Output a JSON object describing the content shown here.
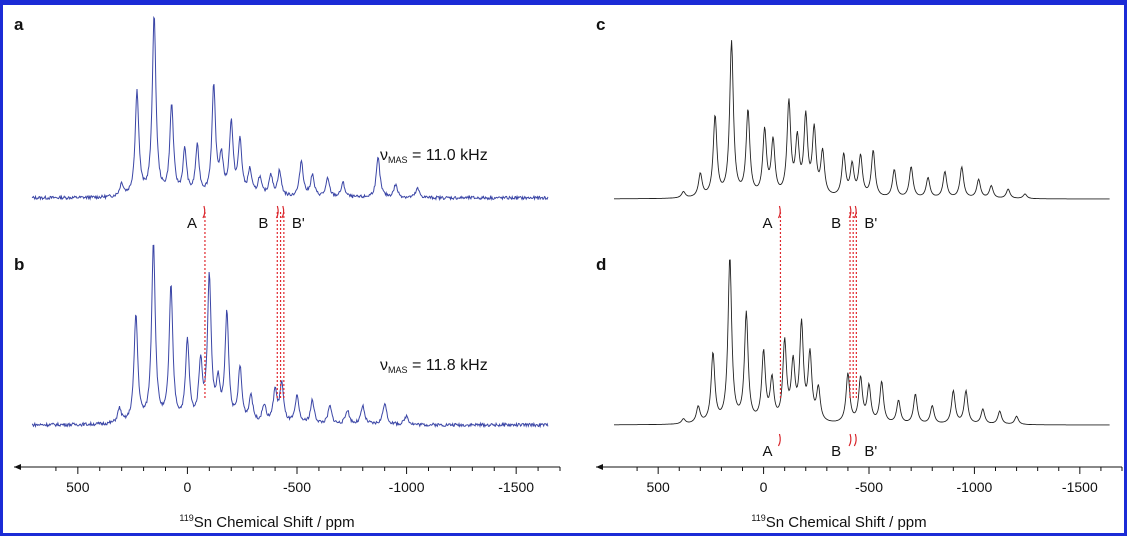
{
  "chart_data": [
    {
      "type": "line",
      "panel_label": "a",
      "color": "#3b46a6",
      "annotation": {
        "prefix": "ν",
        "sub": "MAS",
        "suffix": " = 11.0 kHz"
      },
      "xlim": [
        700,
        -1700
      ],
      "x_ticks": [
        500,
        0,
        -500,
        -1000,
        -1500
      ],
      "x_tick_labels": [
        "500",
        "0",
        "-500",
        "-1000",
        "-1500"
      ],
      "xlabel": {
        "sup": "119",
        "text": "Sn Chemical Shift / ppm"
      },
      "markers": [
        "A",
        "B",
        "B'"
      ],
      "peaks": [
        [
          300,
          0.07
        ],
        [
          230,
          0.58
        ],
        [
          152,
          1.0
        ],
        [
          72,
          0.5
        ],
        [
          12,
          0.25
        ],
        [
          -45,
          0.27
        ],
        [
          -120,
          0.6
        ],
        [
          -155,
          0.2
        ],
        [
          -200,
          0.4
        ],
        [
          -240,
          0.3
        ],
        [
          -285,
          0.14
        ],
        [
          -330,
          0.1
        ],
        [
          -380,
          0.12
        ],
        [
          -420,
          0.14
        ],
        [
          -520,
          0.2
        ],
        [
          -570,
          0.12
        ],
        [
          -640,
          0.1
        ],
        [
          -710,
          0.08
        ],
        [
          -870,
          0.22
        ],
        [
          -950,
          0.07
        ],
        [
          -1050,
          0.05
        ]
      ]
    },
    {
      "type": "line",
      "panel_label": "b",
      "color": "#3b46a6",
      "annotation": {
        "prefix": "ν",
        "sub": "MAS",
        "suffix": " = 11.8 kHz"
      },
      "xlim": [
        700,
        -1700
      ],
      "peaks": [
        [
          310,
          0.08
        ],
        [
          235,
          0.6
        ],
        [
          155,
          1.0
        ],
        [
          75,
          0.75
        ],
        [
          0,
          0.45
        ],
        [
          -60,
          0.32
        ],
        [
          -100,
          0.8
        ],
        [
          -140,
          0.2
        ],
        [
          -180,
          0.6
        ],
        [
          -240,
          0.3
        ],
        [
          -290,
          0.15
        ],
        [
          -350,
          0.1
        ],
        [
          -400,
          0.18
        ],
        [
          -430,
          0.22
        ],
        [
          -500,
          0.15
        ],
        [
          -570,
          0.13
        ],
        [
          -650,
          0.1
        ],
        [
          -730,
          0.08
        ],
        [
          -800,
          0.1
        ],
        [
          -900,
          0.12
        ],
        [
          -1000,
          0.05
        ]
      ]
    },
    {
      "type": "line",
      "panel_label": "c",
      "color": "#222222",
      "xlim": [
        700,
        -1700
      ],
      "x_ticks": [
        500,
        0,
        -500,
        -1000,
        -1500
      ],
      "x_tick_labels": [
        "500",
        "0",
        "-500",
        "-1000",
        "-1500"
      ],
      "xlabel": {
        "sup": "119",
        "text": "Sn Chemical Shift / ppm"
      },
      "markers": [
        "A",
        "B",
        "B'"
      ],
      "peaks": [
        [
          380,
          0.04
        ],
        [
          300,
          0.15
        ],
        [
          230,
          0.52
        ],
        [
          152,
          1.0
        ],
        [
          74,
          0.55
        ],
        [
          -5,
          0.42
        ],
        [
          -45,
          0.35
        ],
        [
          -120,
          0.6
        ],
        [
          -160,
          0.35
        ],
        [
          -200,
          0.5
        ],
        [
          -240,
          0.42
        ],
        [
          -280,
          0.28
        ],
        [
          -380,
          0.27
        ],
        [
          -420,
          0.2
        ],
        [
          -460,
          0.26
        ],
        [
          -520,
          0.3
        ],
        [
          -620,
          0.18
        ],
        [
          -700,
          0.2
        ],
        [
          -780,
          0.13
        ],
        [
          -860,
          0.17
        ],
        [
          -940,
          0.2
        ],
        [
          -1020,
          0.12
        ],
        [
          -1080,
          0.08
        ],
        [
          -1160,
          0.06
        ],
        [
          -1240,
          0.03
        ]
      ]
    },
    {
      "type": "line",
      "panel_label": "d",
      "color": "#222222",
      "xlim": [
        700,
        -1700
      ],
      "markers": [
        "A",
        "B",
        "B'"
      ],
      "peaks": [
        [
          380,
          0.03
        ],
        [
          310,
          0.1
        ],
        [
          240,
          0.42
        ],
        [
          160,
          1.0
        ],
        [
          82,
          0.66
        ],
        [
          0,
          0.42
        ],
        [
          -40,
          0.25
        ],
        [
          -100,
          0.48
        ],
        [
          -140,
          0.34
        ],
        [
          -180,
          0.58
        ],
        [
          -220,
          0.4
        ],
        [
          -260,
          0.2
        ],
        [
          -400,
          0.3
        ],
        [
          -460,
          0.27
        ],
        [
          -500,
          0.22
        ],
        [
          -560,
          0.25
        ],
        [
          -640,
          0.14
        ],
        [
          -720,
          0.18
        ],
        [
          -800,
          0.11
        ],
        [
          -900,
          0.2
        ],
        [
          -960,
          0.2
        ],
        [
          -1040,
          0.09
        ],
        [
          -1120,
          0.08
        ],
        [
          -1200,
          0.05
        ]
      ]
    }
  ]
}
